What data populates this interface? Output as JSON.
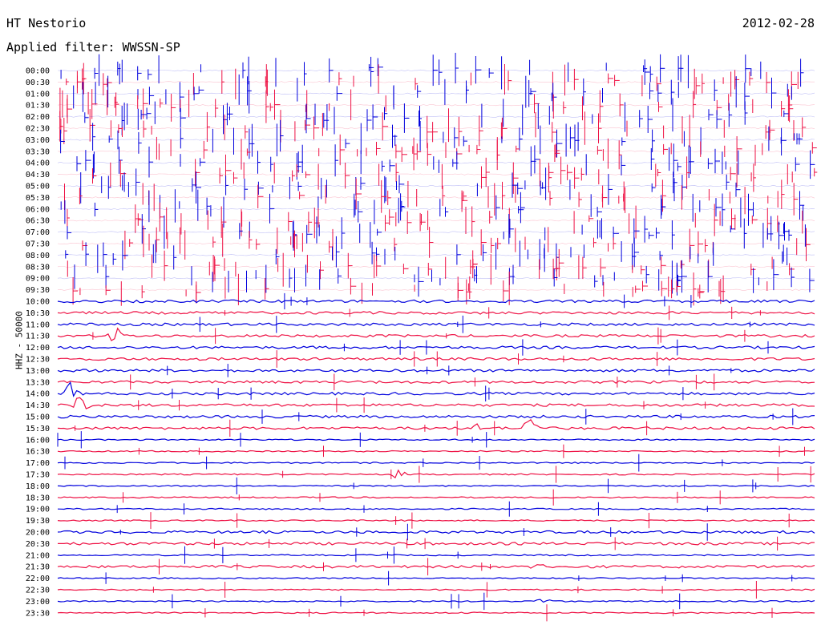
{
  "header": {
    "station": "HT Nestorio",
    "date": "2012-02-28",
    "filter": "Applied filter: WWSSN-SP",
    "channel": "HHZ - 50000"
  },
  "colors": {
    "trace_a": "#0000dd",
    "trace_b": "#ee1144",
    "text": "#000000"
  },
  "chart_data": {
    "type": "line",
    "title": "HT Nestorio",
    "subtitle": "Applied filter: WWSSN-SP",
    "ylabel": "HHZ - 50000",
    "row_labels": [
      "00:00",
      "00:30",
      "01:00",
      "01:30",
      "02:00",
      "02:30",
      "03:00",
      "03:30",
      "04:00",
      "04:30",
      "05:00",
      "05:30",
      "06:00",
      "06:30",
      "07:00",
      "07:30",
      "08:00",
      "08:30",
      "09:00",
      "09:30",
      "10:00",
      "10:30",
      "11:00",
      "11:30",
      "12:00",
      "12:30",
      "13:00",
      "13:30",
      "14:00",
      "14:30",
      "15:00",
      "15:30",
      "16:00",
      "16:30",
      "17:00",
      "17:30",
      "18:00",
      "18:30",
      "19:00",
      "19:30",
      "20:00",
      "20:30",
      "21:00",
      "21:30",
      "22:00",
      "22:30",
      "23:00",
      "23:30"
    ],
    "row_colors": [
      "#0000dd",
      "#ee1144"
    ],
    "noise_amplitude": [
      1,
      1,
      1,
      1,
      1,
      1,
      1,
      1,
      1,
      1,
      1,
      1,
      1,
      1,
      1,
      1,
      1,
      1,
      1,
      1,
      2,
      2,
      2,
      2,
      2,
      2,
      2,
      2,
      2,
      2,
      2,
      2,
      1,
      1,
      1,
      1,
      1,
      1,
      1,
      1,
      2,
      2,
      1,
      2,
      1,
      1,
      1,
      1
    ],
    "events": [
      {
        "row": 23,
        "minute": 2.3,
        "amplitude": 12
      },
      {
        "row": 28,
        "minute": 0.6,
        "amplitude": 18
      },
      {
        "row": 29,
        "minute": 0.9,
        "amplitude": 14
      },
      {
        "row": 31,
        "minute": 16.5,
        "amplitude": 10
      },
      {
        "row": 31,
        "minute": 18.8,
        "amplitude": 20
      },
      {
        "row": 35,
        "minute": 13.5,
        "amplitude": 6
      },
      {
        "row": 43,
        "minute": 19.0,
        "amplitude": 6
      },
      {
        "row": 46,
        "minute": 19.3,
        "amplitude": 7
      }
    ],
    "spike_rows": [
      0,
      19
    ]
  }
}
